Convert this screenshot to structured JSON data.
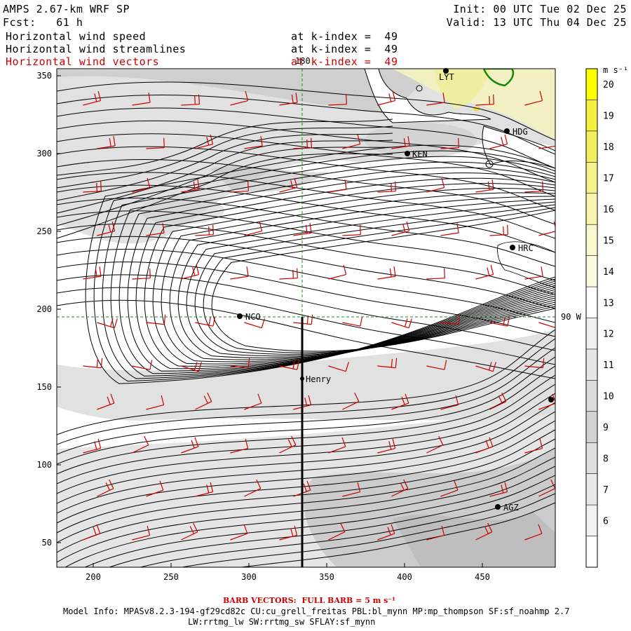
{
  "header": {
    "title": "AMPS 2.67-km WRF SP",
    "init": "Init: 00 UTC Tue 02 Dec 25",
    "fcst_label": "Fcst:",
    "fcst_value": "61 h",
    "valid": "Valid: 13 UTC Thu 04 Dec 25",
    "fields": [
      {
        "name": "Horizontal wind speed",
        "level": "at k-index =  49"
      },
      {
        "name": "Horizontal wind streamlines",
        "level": "at k-index =  49"
      },
      {
        "name": "Horizontal wind vectors",
        "level": "at k-index =  49"
      }
    ]
  },
  "map": {
    "x_ticks": [
      "200",
      "250",
      "300",
      "350",
      "400",
      "450"
    ],
    "y_ticks": [
      "350",
      "300",
      "250",
      "200",
      "150",
      "100",
      "50"
    ],
    "meridian_label": "180",
    "parallel_label": "90 W",
    "stations": [
      {
        "name": "NCO"
      },
      {
        "name": "Henry"
      },
      {
        "name": "KEN"
      },
      {
        "name": "HDG"
      },
      {
        "name": "HRC"
      },
      {
        "name": "AGZ"
      },
      {
        "name": "LYT"
      }
    ]
  },
  "colorbar": {
    "units": "m s⁻¹",
    "labels": [
      "20",
      "19",
      "18",
      "17",
      "16",
      "15",
      "14",
      "13",
      "12",
      "11",
      "10",
      "9",
      "8",
      "7",
      "6"
    ]
  },
  "footer": {
    "barb_note": "BARB VECTORS:  FULL BARB = 5 m s⁻¹",
    "model_info": "Model Info: MPASv8.2.3-194-gf29cd82c CU:cu_grell_freitas PBL:bl_mynn MP:mp_thompson SF:sf_noahmp 2.7",
    "model_info2": "LW:rrtmg_lw SW:rrtmg_sw SFLAY:sf_mynn"
  },
  "colors": {
    "barb": "#cc0000",
    "guide": "#228822",
    "coast": "#118811"
  }
}
